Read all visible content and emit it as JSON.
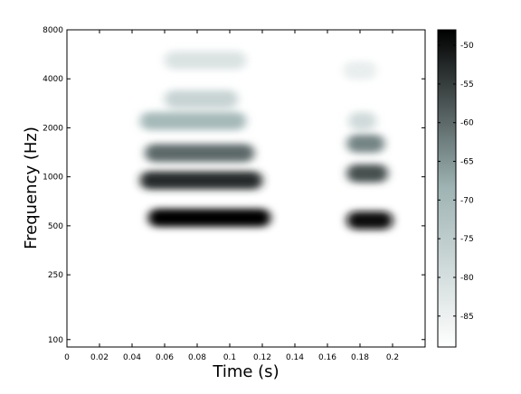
{
  "chart_data": {
    "type": "heatmap",
    "title": "",
    "xlabel": "Time (s)",
    "ylabel": "Frequency (Hz)",
    "xlim": [
      0,
      0.22
    ],
    "ylim": [
      90,
      8000
    ],
    "yscale": "log",
    "x_ticks": [
      0,
      0.02,
      0.04,
      0.06,
      0.08,
      0.1,
      0.12,
      0.14,
      0.16,
      0.18,
      0.2
    ],
    "x_tick_labels": [
      "0",
      "0.02",
      "0.04",
      "0.06",
      "0.08",
      "0.1",
      "0.12",
      "0.14",
      "0.16",
      "0.18",
      "0.2"
    ],
    "y_ticks": [
      100,
      250,
      500,
      1000,
      2000,
      4000,
      8000
    ],
    "y_tick_labels": [
      "100",
      "250",
      "500",
      "1000",
      "2000",
      "4000",
      "8000"
    ],
    "colorbar": {
      "range": [
        -89,
        -48
      ],
      "ticks": [
        -50,
        -55,
        -60,
        -65,
        -70,
        -75,
        -80,
        -85
      ],
      "tick_labels": [
        "-50",
        "-55",
        "-60",
        "-65",
        "-70",
        "-75",
        "-80",
        "-85"
      ],
      "colormap": "bone_reversed",
      "color_low": "#ffffff",
      "color_mid": "#9fb4b4",
      "color_high": "#000000"
    },
    "grid": false,
    "segments": [
      {
        "t_start": 0.045,
        "t_end": 0.125,
        "bands": [
          {
            "freq": 560,
            "level": -48,
            "t_start": 0.05,
            "t_end": 0.125
          },
          {
            "freq": 950,
            "level": -53,
            "t_start": 0.045,
            "t_end": 0.12
          },
          {
            "freq": 1400,
            "level": -60,
            "t_start": 0.048,
            "t_end": 0.115
          },
          {
            "freq": 2200,
            "level": -70,
            "t_start": 0.045,
            "t_end": 0.11
          },
          {
            "freq": 3000,
            "level": -77,
            "t_start": 0.06,
            "t_end": 0.105
          },
          {
            "freq": 5200,
            "level": -81,
            "t_start": 0.06,
            "t_end": 0.11
          }
        ]
      },
      {
        "t_start": 0.17,
        "t_end": 0.2,
        "bands": [
          {
            "freq": 540,
            "level": -49,
            "t_start": 0.172,
            "t_end": 0.2
          },
          {
            "freq": 1050,
            "level": -57,
            "t_start": 0.172,
            "t_end": 0.197
          },
          {
            "freq": 1600,
            "level": -63,
            "t_start": 0.172,
            "t_end": 0.195
          },
          {
            "freq": 2200,
            "level": -79,
            "t_start": 0.173,
            "t_end": 0.19
          },
          {
            "freq": 4500,
            "level": -84,
            "t_start": 0.17,
            "t_end": 0.19
          }
        ]
      }
    ]
  }
}
